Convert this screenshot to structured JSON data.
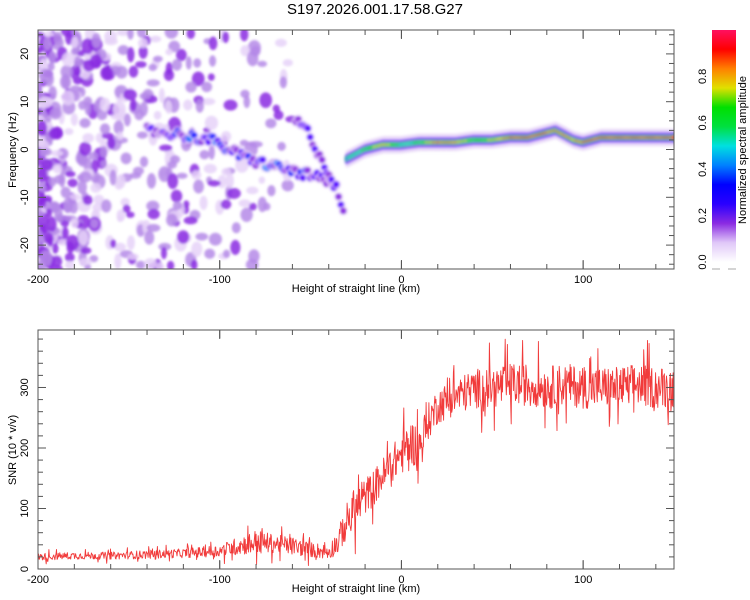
{
  "title": "S197.2026.001.17.58.G27",
  "colors": {
    "snr_line": "#f03030",
    "axis": "#555555",
    "colormap": [
      "#ffffff",
      "#e6d2f8",
      "#b58ae8",
      "#8a2be2",
      "#5a00ff",
      "#1a1aff",
      "#0070ff",
      "#00e0e0",
      "#00e060",
      "#00e000",
      "#c8e000",
      "#ffd000",
      "#ff8000",
      "#ff2020",
      "#ff1060"
    ]
  },
  "chart_data": [
    {
      "type": "heatmap",
      "title": "S197.2026.001.17.58.G27",
      "xlabel": "Height of straight line (km)",
      "ylabel": "Frequency (Hz)",
      "xlim": [
        -200,
        150
      ],
      "ylim": [
        -25,
        25
      ],
      "x_ticks": [
        -200,
        -100,
        0,
        100
      ],
      "x_tick_labels": [
        "-200",
        "-100",
        "0",
        "100"
      ],
      "y_ticks": [
        -20,
        -10,
        0,
        10,
        20
      ],
      "y_tick_labels": [
        "-20",
        "-10",
        "0",
        "10",
        "20"
      ],
      "colorbar": {
        "label": "Normalized spectral amplitude",
        "range": [
          0,
          1
        ],
        "ticks": [
          0.0,
          0.2,
          0.4,
          0.6,
          0.8
        ],
        "tick_labels": [
          "0.0",
          "0.2",
          "0.4",
          "0.6",
          "0.8"
        ]
      },
      "description": "Scattered low-amplitude noise for x < -100 km; two descending bands between -140 and -25 km reaching about -15 Hz; strong stable signal near 1-3 Hz for x > -30 km with peak amplitude ~1.0",
      "ridge": {
        "x": [
          -30,
          -20,
          -10,
          0,
          10,
          20,
          30,
          40,
          50,
          60,
          70,
          80,
          85,
          90,
          95,
          100,
          110,
          120,
          130,
          140,
          150
        ],
        "freq_hz": [
          -2,
          0,
          1,
          1,
          1.5,
          1.5,
          1.5,
          2,
          2,
          2.5,
          2.5,
          3.5,
          4,
          3,
          2,
          1.5,
          2.5,
          2.5,
          2.5,
          2.5,
          2.5
        ],
        "amplitude": [
          0.45,
          0.55,
          0.8,
          0.5,
          0.55,
          0.9,
          0.85,
          0.6,
          0.7,
          0.9,
          0.9,
          0.9,
          0.85,
          0.9,
          0.8,
          0.9,
          0.9,
          0.95,
          0.95,
          0.95,
          0.95
        ]
      },
      "descending_band_1": {
        "x": [
          -140,
          -120,
          -105,
          -95,
          -85,
          -75,
          -65,
          -55,
          -45,
          -40,
          -35
        ],
        "freq_hz": [
          4,
          3,
          2,
          0,
          -2,
          -3,
          -4,
          -5,
          -6,
          -7,
          -8
        ],
        "amplitude": [
          0.2,
          0.3,
          0.35,
          0.3,
          0.3,
          0.35,
          0.3,
          0.3,
          0.25,
          0.25,
          0.2
        ]
      },
      "descending_band_2": {
        "x": [
          -58,
          -52,
          -48,
          -44,
          -40,
          -36,
          -33,
          -31
        ],
        "freq_hz": [
          6,
          4,
          1,
          -2,
          -5,
          -8,
          -12,
          -15
        ],
        "amplitude": [
          0.2,
          0.3,
          0.25,
          0.25,
          0.2,
          0.25,
          0.2,
          0.15
        ]
      }
    },
    {
      "type": "line",
      "xlabel": "Height of straight line (km)",
      "ylabel": "SNR (10 * v/v)",
      "xlim": [
        -200,
        150
      ],
      "ylim": [
        0,
        395
      ],
      "x_ticks": [
        -200,
        -100,
        0,
        100
      ],
      "x_tick_labels": [
        "-200",
        "-100",
        "0",
        "100"
      ],
      "y_ticks": [
        0,
        100,
        200,
        300
      ],
      "y_tick_labels": [
        "0",
        "100",
        "200",
        "300"
      ],
      "series": [
        {
          "name": "SNR",
          "x": [
            -200,
            -180,
            -160,
            -140,
            -120,
            -100,
            -90,
            -80,
            -70,
            -60,
            -50,
            -40,
            -35,
            -30,
            -25,
            -20,
            -15,
            -10,
            -5,
            0,
            5,
            10,
            15,
            20,
            30,
            40,
            50,
            60,
            70,
            80,
            90,
            100,
            110,
            120,
            130,
            140,
            150
          ],
          "mean": [
            20,
            22,
            22,
            24,
            26,
            30,
            38,
            45,
            42,
            38,
            32,
            28,
            45,
            80,
            100,
            120,
            135,
            155,
            175,
            190,
            210,
            200,
            245,
            270,
            285,
            298,
            300,
            305,
            305,
            300,
            305,
            300,
            300,
            300,
            305,
            300,
            300
          ],
          "spread": [
            12,
            12,
            12,
            14,
            15,
            20,
            30,
            40,
            30,
            30,
            25,
            25,
            40,
            60,
            70,
            60,
            60,
            60,
            60,
            70,
            70,
            80,
            60,
            60,
            60,
            65,
            70,
            70,
            70,
            70,
            70,
            70,
            70,
            70,
            70,
            70,
            70
          ]
        }
      ]
    }
  ]
}
